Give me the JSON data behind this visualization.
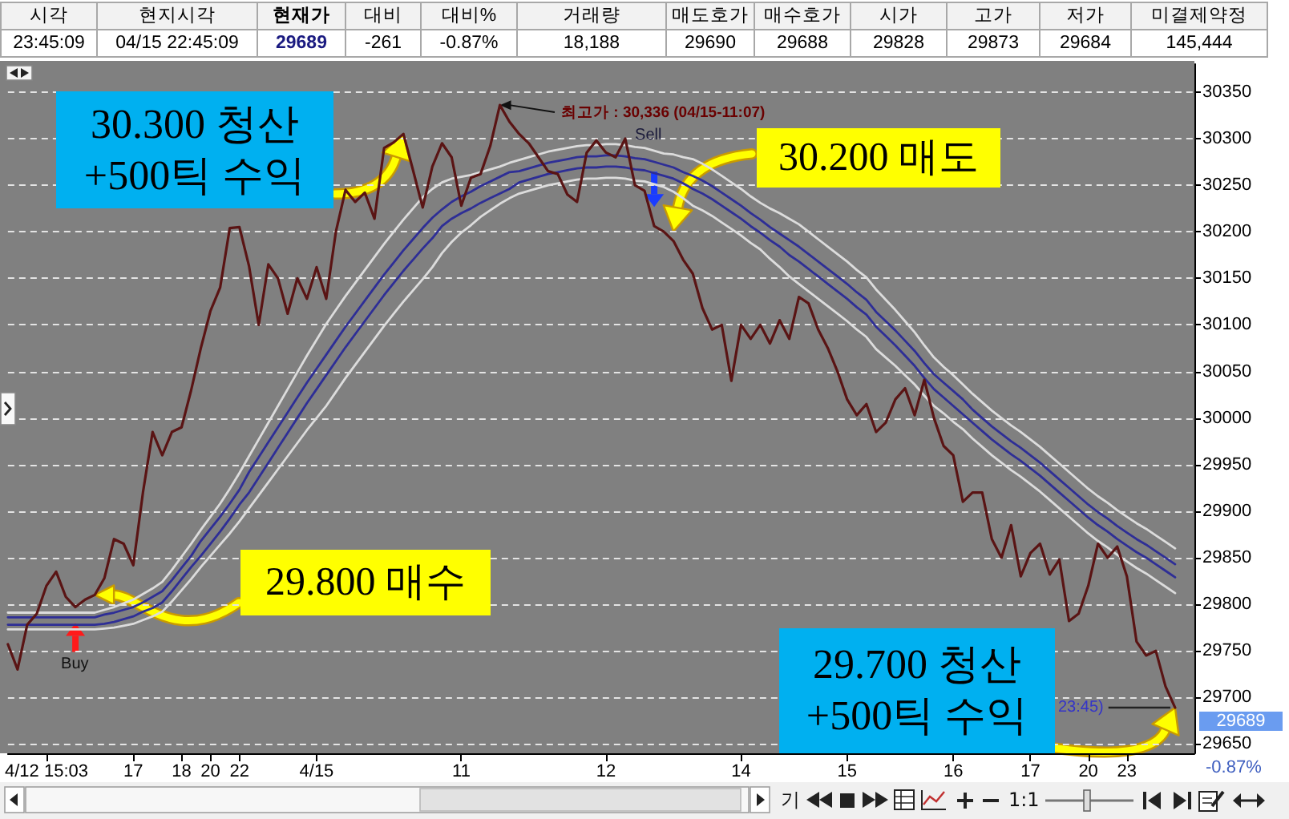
{
  "chart_data": {
    "type": "line",
    "marker": "none",
    "grid": "y",
    "categories": [
      null,
      null,
      null,
      null,
      "4/12 15:03",
      null,
      null,
      null,
      null,
      null,
      null,
      null,
      null,
      "17",
      null,
      null,
      null,
      null,
      "18",
      null,
      null,
      "20",
      null,
      null,
      "22",
      null,
      null,
      null,
      null,
      null,
      null,
      null,
      "4/15",
      null,
      null,
      null,
      null,
      null,
      null,
      null,
      null,
      null,
      null,
      null,
      null,
      null,
      null,
      "11",
      null,
      null,
      null,
      null,
      null,
      null,
      null,
      null,
      null,
      null,
      null,
      null,
      null,
      null,
      "12",
      null,
      null,
      null,
      null,
      null,
      null,
      null,
      null,
      null,
      null,
      null,
      null,
      null,
      "14",
      null,
      null,
      null,
      null,
      null,
      null,
      null,
      null,
      null,
      null,
      "15",
      null,
      null,
      null,
      null,
      null,
      null,
      null,
      null,
      null,
      null,
      "16",
      null,
      null,
      null,
      null,
      null,
      null,
      null,
      "17",
      null,
      null,
      null,
      null,
      null,
      "20",
      null,
      null,
      null,
      "23",
      null,
      null,
      null,
      null,
      null,
      null,
      null
    ],
    "series": [
      {
        "color": "#5a1414",
        "values": [
          29757,
          29730,
          29778,
          29790,
          29820,
          29835,
          29808,
          29797,
          29805,
          29810,
          29828,
          29870,
          29865,
          29842,
          29920,
          29985,
          29960,
          29985,
          29990,
          30030,
          30075,
          30115,
          30140,
          30204,
          30205,
          30163,
          30100,
          30165,
          30150,
          30112,
          30150,
          30128,
          30162,
          30128,
          30200,
          30245,
          30232,
          30242,
          30214,
          30290,
          30296,
          30305,
          30266,
          30226,
          30270,
          30295,
          30280,
          30228,
          30258,
          30262,
          30292,
          30336,
          30318,
          30305,
          30295,
          30280,
          30265,
          30262,
          30240,
          30232,
          30285,
          30298,
          30285,
          30280,
          30300,
          30250,
          30244,
          30206,
          30200,
          30190,
          30170,
          30155,
          30118,
          30095,
          30100,
          30040,
          30100,
          30085,
          30100,
          30080,
          30105,
          30085,
          30130,
          30123,
          30095,
          30075,
          30050,
          30020,
          30003,
          30015,
          29985,
          29995,
          30020,
          30032,
          30003,
          30041,
          30000,
          29970,
          29960,
          29910,
          29920,
          29920,
          29870,
          29850,
          29885,
          29830,
          29855,
          29865,
          29832,
          29848,
          29782,
          29790,
          29820,
          29865,
          29850,
          29862,
          29830,
          29760,
          29745,
          29750,
          29712,
          29689,
          null,
          null
        ]
      },
      {
        "color": "#2e2e96",
        "values": [
          29786,
          29786,
          29786,
          29786,
          29786,
          29786,
          29786,
          29786,
          29786,
          29786,
          29789,
          29791,
          29794,
          29797,
          29802,
          29808,
          29814,
          29826,
          29839,
          29852,
          29868,
          29881,
          29894,
          29908,
          29923,
          29942,
          29958,
          29974,
          29990,
          30006,
          30022,
          30038,
          30053,
          30068,
          30083,
          30098,
          30112,
          30126,
          30140,
          30154,
          30167,
          30180,
          30192,
          30204,
          30215,
          30224,
          30232,
          30238,
          30243,
          30249,
          30254,
          30259,
          30264,
          30265,
          30268,
          30271,
          30274,
          30276,
          30278,
          30280,
          30281,
          30281,
          30282,
          30282,
          30281,
          30279,
          30278,
          30275,
          30272,
          30269,
          30264,
          30260,
          30255,
          30249,
          30242,
          30235,
          30228,
          30220,
          30213,
          30205,
          30198,
          30191,
          30184,
          30176,
          30168,
          30160,
          30152,
          30144,
          30135,
          30127,
          30114,
          30104,
          30094,
          30083,
          30072,
          30059,
          30047,
          30038,
          30029,
          30020,
          30009,
          30000,
          29991,
          29983,
          29975,
          29968,
          29960,
          29952,
          29943,
          29934,
          29925,
          29916,
          29907,
          29899,
          29892,
          29884,
          29877,
          29870,
          29864,
          29857,
          29850,
          29843,
          null,
          null
        ]
      },
      {
        "color": "#2e2e96",
        "values": [
          29778,
          29778,
          29778,
          29778,
          29778,
          29778,
          29778,
          29778,
          29778,
          29778,
          29779,
          29781,
          29784,
          29787,
          29792,
          29796,
          29802,
          29814,
          29827,
          29840,
          29852,
          29865,
          29878,
          29892,
          29907,
          29920,
          29936,
          29952,
          29968,
          29984,
          30000,
          30016,
          30031,
          30046,
          30061,
          30076,
          30090,
          30104,
          30118,
          30132,
          30145,
          30158,
          30170,
          30182,
          30193,
          30206,
          30214,
          30220,
          30225,
          30231,
          30236,
          30241,
          30246,
          30253,
          30256,
          30259,
          30262,
          30264,
          30266,
          30268,
          30269,
          30269,
          30270,
          30270,
          30269,
          30267,
          30266,
          30263,
          30260,
          30257,
          30252,
          30246,
          30241,
          30235,
          30228,
          30221,
          30214,
          30206,
          30199,
          30191,
          30184,
          30175,
          30168,
          30160,
          30152,
          30144,
          30136,
          30128,
          30119,
          30111,
          30098,
          30088,
          30078,
          30067,
          30056,
          30043,
          30031,
          30022,
          30013,
          30004,
          29995,
          29986,
          29977,
          29969,
          29961,
          29954,
          29946,
          29938,
          29929,
          29920,
          29911,
          29902,
          29893,
          29885,
          29878,
          29870,
          29863,
          29856,
          29850,
          29843,
          29836,
          29829,
          null,
          null
        ]
      },
      {
        "color": "#dcdcdc",
        "values": [
          29791,
          29791,
          29791,
          29791,
          29791,
          29791,
          29791,
          29791,
          29791,
          29791,
          29794,
          29797,
          29801,
          29805,
          29811,
          29817,
          29824,
          29837,
          29851,
          29865,
          29880,
          29894,
          29908,
          29924,
          29941,
          29959,
          29977,
          29995,
          30013,
          30031,
          30049,
          30067,
          30084,
          30101,
          30116,
          30131,
          30145,
          30159,
          30173,
          30187,
          30200,
          30213,
          30225,
          30237,
          30246,
          30253,
          30257,
          30259,
          30261,
          30264,
          30267,
          30270,
          30274,
          30277,
          30280,
          30283,
          30286,
          30288,
          30290,
          30292,
          30293,
          30293,
          30294,
          30294,
          30293,
          30291,
          30290,
          30287,
          30284,
          30283,
          30280,
          30278,
          30273,
          30267,
          30260,
          30253,
          30246,
          30238,
          30231,
          30225,
          30220,
          30214,
          30208,
          30200,
          30192,
          30184,
          30176,
          30168,
          30159,
          30151,
          30138,
          30127,
          30116,
          30104,
          30092,
          30078,
          30065,
          30055,
          30046,
          30036,
          30026,
          30017,
          30008,
          30000,
          29992,
          29985,
          29977,
          29969,
          29960,
          29951,
          29942,
          29933,
          29924,
          29916,
          29909,
          29901,
          29894,
          29887,
          29881,
          29874,
          29867,
          29860,
          null,
          null
        ]
      },
      {
        "color": "#dcdcdc",
        "values": [
          29773,
          29773,
          29773,
          29773,
          29773,
          29773,
          29773,
          29773,
          29773,
          29773,
          29774,
          29775,
          29777,
          29779,
          29783,
          29787,
          29792,
          29803,
          29815,
          29827,
          29840,
          29852,
          29864,
          29876,
          29889,
          29903,
          29917,
          29931,
          29945,
          29959,
          29973,
          29987,
          30000,
          30013,
          30028,
          30043,
          30057,
          30071,
          30085,
          30099,
          30112,
          30125,
          30137,
          30149,
          30162,
          30177,
          30189,
          30199,
          30207,
          30216,
          30223,
          30230,
          30236,
          30241,
          30244,
          30247,
          30250,
          30252,
          30254,
          30256,
          30257,
          30257,
          30258,
          30258,
          30257,
          30255,
          30254,
          30251,
          30248,
          30243,
          30236,
          30228,
          30223,
          30217,
          30210,
          30203,
          30196,
          30188,
          30181,
          30171,
          30162,
          30152,
          30144,
          30136,
          30128,
          30120,
          30112,
          30104,
          30095,
          30087,
          30074,
          30065,
          30056,
          30046,
          30036,
          30024,
          30013,
          30005,
          29996,
          29988,
          29978,
          29969,
          29960,
          29952,
          29944,
          29937,
          29929,
          29921,
          29912,
          29903,
          29894,
          29885,
          29876,
          29868,
          29861,
          29853,
          29846,
          29839,
          29833,
          29826,
          29819,
          29812,
          null,
          null
        ]
      }
    ],
    "ylim": [
      29640,
      30380
    ],
    "yticks": [
      29650,
      29700,
      29750,
      29800,
      29850,
      29900,
      29950,
      30000,
      30050,
      30100,
      30150,
      30200,
      30250,
      30300,
      30350
    ],
    "annotations": [
      "시각",
      "현지시각",
      "현재가",
      "대비",
      "대비%",
      "거래량",
      "매도호가",
      "매수호가",
      "시가",
      "고가",
      "저가",
      "미결제약정",
      "23:45:09",
      "04/15 22:45:09",
      "29689",
      "-261",
      "-0.87%",
      "18,188",
      "29690",
      "29688",
      "29828",
      "29873",
      "29684",
      "145,444",
      "최고가 : 30,336 (04/15-11:07)",
      "30.300 청산\n+500틱 수익",
      "30.200 매도",
      "29.800 매수",
      "29.700 청산\n+500틱 수익",
      "Buy",
      "Sell",
      "23:45)",
      "29689",
      "-0.87%",
      "기",
      "1:1"
    ]
  }
}
